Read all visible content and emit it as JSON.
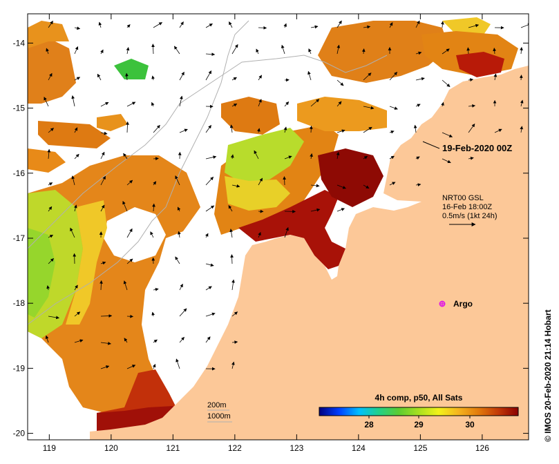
{
  "map": {
    "lon_ticks": [
      "119",
      "120",
      "121",
      "122",
      "123",
      "124",
      "125",
      "126"
    ],
    "lat_ticks": [
      "-14",
      "-15",
      "-16",
      "-17",
      "-18",
      "-19",
      "-20"
    ],
    "lon_range": [
      118.65,
      126.75
    ],
    "lat_range": [
      -20.1,
      -13.55
    ]
  },
  "annotations": {
    "date_label": "19-Feb-2020 00Z",
    "current_source": "NRT00 GSL",
    "current_time": "16-Feb 18:00Z",
    "current_scale": "0.5m/s (1kt 24h)",
    "argo_label": "Argo",
    "isobath_200": "200m",
    "isobath_1000": "1000m",
    "credit": "© IMOS 20-Feb-2020 21:14 Hobart"
  },
  "colorbar": {
    "title": "4h comp, p50, All Sats",
    "ticks": [
      "28",
      "29",
      "30"
    ],
    "colors": [
      "#00007f",
      "#0040ff",
      "#00bfff",
      "#22d088",
      "#5ccc32",
      "#a8e020",
      "#f2f21a",
      "#f5b41e",
      "#e27a0c",
      "#c23a08",
      "#8b0000"
    ]
  },
  "colors": {
    "land": "#fcc898",
    "sst_red": "#a01008",
    "sst_dark": "#8e0a04",
    "sst_orange": "#de7a12",
    "sst_light_orange": "#ec9a1e",
    "sst_yellow": "#f2e02a",
    "sst_green": "#96d62c",
    "isobath": "#b0b0b0",
    "argo": "#e020e0"
  }
}
